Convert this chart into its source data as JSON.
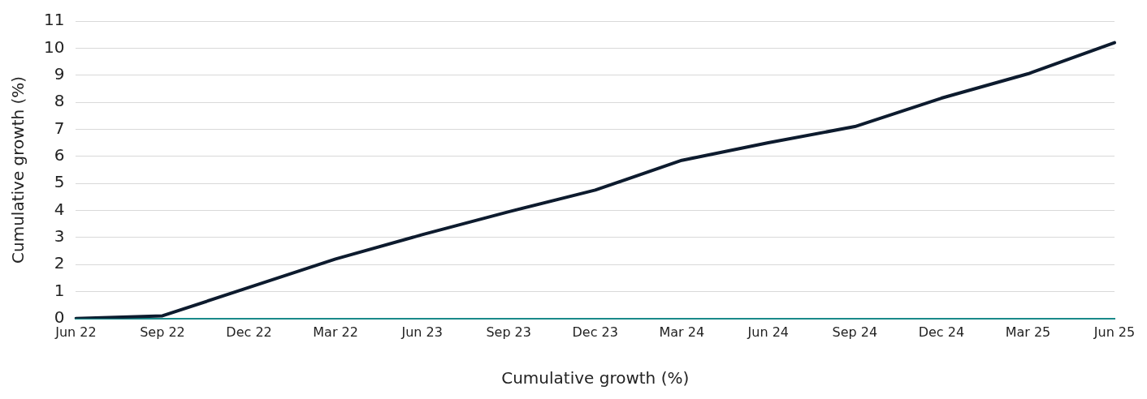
{
  "chart_data": {
    "type": "line",
    "xlabel": "Cumulative growth (%)",
    "ylabel": "Cumulative growth (%)",
    "categories": [
      "Jun 22",
      "Sep 22",
      "Dec 22",
      "Mar 22",
      "Jun 23",
      "Sep 23",
      "Dec 23",
      "Mar 24",
      "Jun 24",
      "Sep 24",
      "Dec 24",
      "Mar 25",
      "Jun 25"
    ],
    "series": [
      {
        "color": "#0d1b2e",
        "values": [
          0,
          0.1,
          1.15,
          2.2,
          3.1,
          3.95,
          4.75,
          5.85,
          6.5,
          7.1,
          8.15,
          9.05,
          10.2
        ]
      }
    ],
    "ylim": [
      0,
      11
    ],
    "yticks": [
      0,
      1,
      2,
      3,
      4,
      5,
      6,
      7,
      8,
      9,
      10,
      11
    ],
    "grid": "y",
    "legend": false,
    "marker": "none",
    "line_style": "solid"
  }
}
